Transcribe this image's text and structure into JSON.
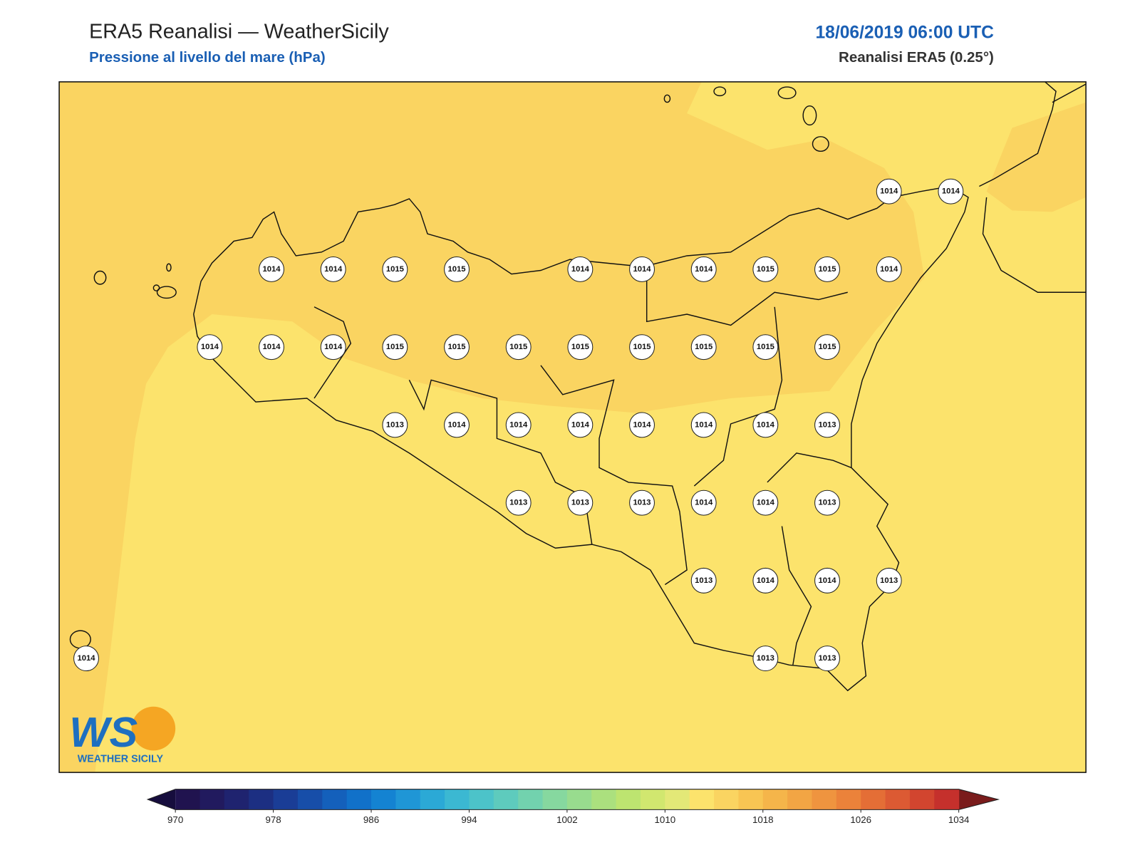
{
  "header": {
    "title": "ERA5 Reanalisi — WeatherSicily",
    "subtitle": "Pressione al livello del mare (hPa)",
    "datetime": "18/06/2019 06:00 UTC",
    "source": "Reanalisi ERA5 (0.25°)"
  },
  "stations": [
    1014,
    1014,
    1014,
    1014,
    1015,
    1015,
    1014,
    1014,
    1014,
    1015,
    1015,
    1014,
    1014,
    1014,
    1014,
    1015,
    1015,
    1015,
    1015,
    1015,
    1015,
    1015,
    1015,
    1013,
    1014,
    1014,
    1014,
    1014,
    1014,
    1014,
    1013,
    1013,
    1013,
    1013,
    1014,
    1014,
    1013,
    1013,
    1014,
    1014,
    1013,
    1014,
    1013,
    1013
  ],
  "colorbar": {
    "lim": [
      970,
      1034
    ],
    "ticks": [
      970,
      978,
      986,
      994,
      1002,
      1010,
      1018,
      1026,
      1034
    ],
    "colors": [
      "#20134f",
      "#211a5e",
      "#1f236f",
      "#1c2f82",
      "#1a3d96",
      "#174ea9",
      "#1460bb",
      "#1171c9",
      "#1483d2",
      "#1f96d6",
      "#2ba9d6",
      "#3bb8d2",
      "#4cc3c9",
      "#5ecbbd",
      "#72d2ae",
      "#86d89f",
      "#98dc8e",
      "#abe07e",
      "#bde470",
      "#d1e76f",
      "#e3e877",
      "#fce36c",
      "#fad461",
      "#f8c553",
      "#f5b54a",
      "#f2a544",
      "#ef943f",
      "#eb823a",
      "#e46e36",
      "#dc5a33",
      "#d2452f",
      "#c5302c"
    ],
    "under_color": "#160d3d",
    "over_color": "#7a1c1c"
  },
  "logo": {
    "mark": "WS",
    "name": "WEATHER SICILY"
  }
}
